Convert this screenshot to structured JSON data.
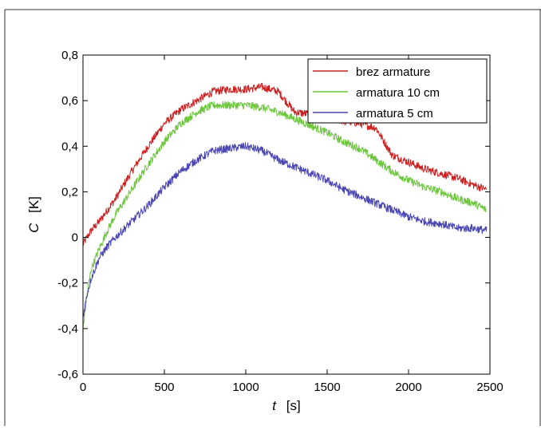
{
  "chart_data": {
    "type": "line",
    "xlabel": {
      "var": "t",
      "unit": "[s]"
    },
    "ylabel": {
      "var": "C",
      "unit": "[K]"
    },
    "xlim": [
      0,
      2500
    ],
    "ylim": [
      -0.6,
      0.8
    ],
    "xticks": [
      0,
      500,
      1000,
      1500,
      2000,
      2500
    ],
    "xtick_labels": [
      "0",
      "500",
      "1000",
      "1500",
      "2000",
      "2500"
    ],
    "yticks": [
      -0.6,
      -0.4,
      -0.2,
      0,
      0.2,
      0.4,
      0.6,
      0.8
    ],
    "ytick_labels": [
      "-0,6",
      "-0,4",
      "-0,2",
      "0",
      "0,2",
      "0,4",
      "0,6",
      "0,8"
    ],
    "grid": false,
    "legend_position": "top-right",
    "series": [
      {
        "name": "brez armature",
        "color": "#cc2020",
        "x": [
          0,
          50,
          100,
          200,
          300,
          400,
          500,
          600,
          700,
          800,
          900,
          1000,
          1100,
          1200,
          1300,
          1400,
          1500,
          1600,
          1700,
          1800,
          1850,
          1900,
          2000,
          2100,
          2200,
          2300,
          2400,
          2480
        ],
        "y": [
          -0.03,
          0.03,
          0.07,
          0.17,
          0.29,
          0.4,
          0.5,
          0.56,
          0.6,
          0.64,
          0.65,
          0.65,
          0.66,
          0.64,
          0.55,
          0.54,
          0.53,
          0.51,
          0.5,
          0.48,
          0.42,
          0.36,
          0.33,
          0.3,
          0.28,
          0.26,
          0.23,
          0.21
        ]
      },
      {
        "name": "armatura 10 cm",
        "color": "#6cc63c",
        "x": [
          0,
          25,
          50,
          100,
          150,
          200,
          300,
          400,
          500,
          600,
          700,
          800,
          900,
          1000,
          1100,
          1200,
          1300,
          1400,
          1500,
          1600,
          1700,
          1800,
          1900,
          2000,
          2100,
          2200,
          2300,
          2400,
          2480
        ],
        "y": [
          -0.4,
          -0.25,
          -0.14,
          -0.05,
          0.03,
          0.1,
          0.21,
          0.32,
          0.42,
          0.5,
          0.55,
          0.58,
          0.58,
          0.58,
          0.57,
          0.55,
          0.52,
          0.49,
          0.46,
          0.42,
          0.39,
          0.34,
          0.29,
          0.25,
          0.22,
          0.2,
          0.17,
          0.15,
          0.12
        ]
      },
      {
        "name": "armatura 5 cm",
        "color": "#4a46b4",
        "x": [
          0,
          25,
          50,
          100,
          150,
          200,
          300,
          400,
          500,
          600,
          700,
          800,
          900,
          1000,
          1100,
          1200,
          1300,
          1400,
          1500,
          1600,
          1700,
          1800,
          1900,
          2000,
          2100,
          2200,
          2300,
          2400,
          2480
        ],
        "y": [
          -0.35,
          -0.25,
          -0.18,
          -0.09,
          -0.04,
          0.0,
          0.07,
          0.14,
          0.22,
          0.29,
          0.34,
          0.38,
          0.39,
          0.4,
          0.38,
          0.34,
          0.31,
          0.28,
          0.25,
          0.21,
          0.18,
          0.15,
          0.12,
          0.09,
          0.07,
          0.06,
          0.04,
          0.04,
          0.03
        ]
      }
    ]
  }
}
